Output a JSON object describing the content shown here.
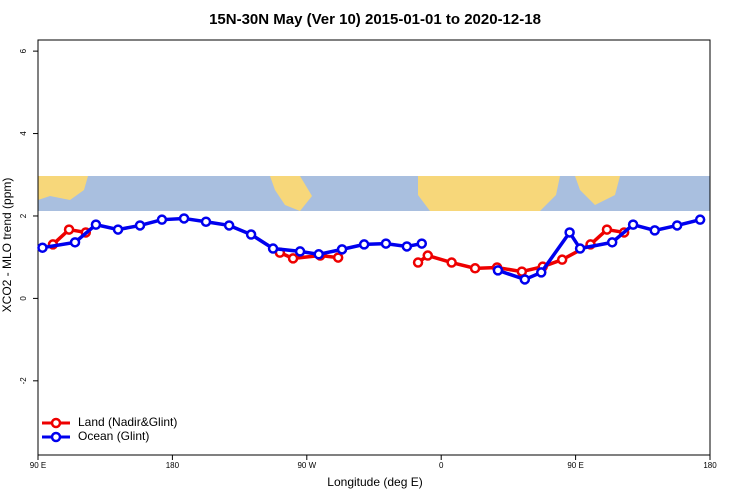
{
  "chart_data": {
    "type": "line",
    "title": "15N-30N May (Ver 10)   2015-01-01 to 2020-12-18",
    "x_label": "Longitude (deg E)",
    "y_label": "XCO2 - MLO trend (ppm)",
    "xlim": [
      90,
      540
    ],
    "ylim": [
      -3.8,
      6.27
    ],
    "xticks": [
      {
        "value": 90,
        "label": "90 E"
      },
      180,
      {
        "value": 270,
        "label": "90 W"
      },
      {
        "value": 360,
        "label": "0"
      },
      {
        "value": 450,
        "label": "90 E"
      },
      {
        "value": 540,
        "label": "180"
      }
    ],
    "yticks": [
      -2,
      0,
      2,
      4,
      6
    ],
    "legend": "bottom-left",
    "series": [
      {
        "name": "Land (Nadir&Glint)",
        "color": "#ee0000",
        "x": [
          100,
          110.8,
          122,
          null,
          252,
          260.8,
          279,
          291,
          null,
          344.5,
          351,
          367,
          382.7,
          397.4,
          414,
          428,
          441,
          460,
          471,
          482.5
        ],
        "values": [
          1.31,
          1.67,
          1.6,
          null,
          1.11,
          0.97,
          1.04,
          0.99,
          null,
          0.87,
          1.04,
          0.87,
          0.73,
          0.75,
          0.65,
          0.77,
          0.94,
          1.31,
          1.67,
          1.6
        ]
      },
      {
        "name": "Ocean (Glint)",
        "color": "#0000ee",
        "x": [
          93,
          114.8,
          128.8,
          143.6,
          158.3,
          173,
          187.8,
          202.5,
          218,
          232.7,
          247.4,
          265.5,
          278,
          293.6,
          308.4,
          323,
          337,
          347,
          null,
          398,
          416,
          427,
          446,
          453,
          474.5,
          488.5,
          503,
          518,
          533.4
        ],
        "values": [
          1.23,
          1.36,
          1.79,
          1.67,
          1.77,
          1.91,
          1.94,
          1.86,
          1.77,
          1.55,
          1.21,
          1.14,
          1.07,
          1.19,
          1.31,
          1.33,
          1.26,
          1.33,
          null,
          0.68,
          0.46,
          0.63,
          1.6,
          1.21,
          1.36,
          1.79,
          1.65,
          1.77,
          1.91
        ]
      }
    ]
  }
}
